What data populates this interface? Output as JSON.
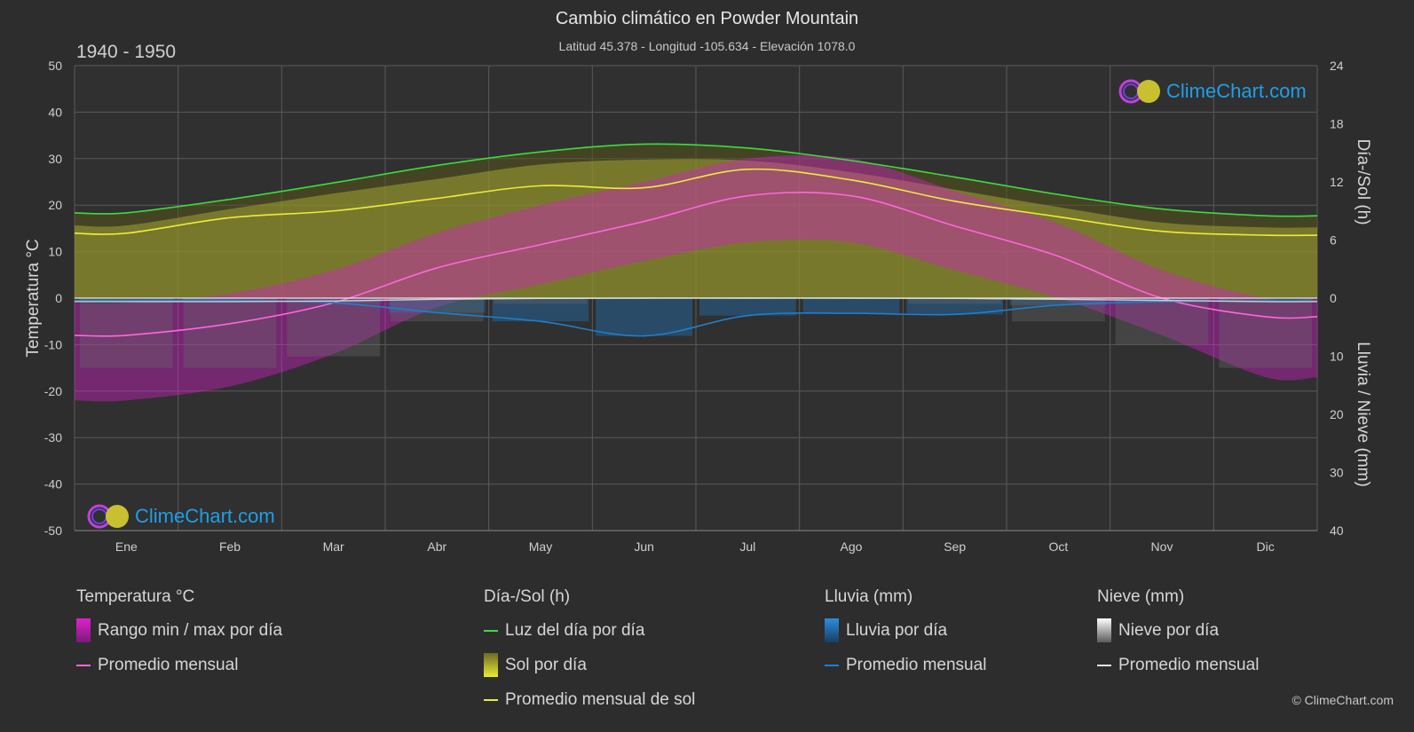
{
  "header": {
    "title": "Cambio climático en Powder Mountain",
    "subtitle": "Latitud 45.378 - Longitud -105.634 - Elevación 1078.0",
    "period": "1940 - 1950"
  },
  "brand": {
    "name": "ClimeChart.com",
    "copyright": "© ClimeChart.com"
  },
  "colors": {
    "background": "#2d2d2d",
    "temp_range": "#d51ec8",
    "temp_avg": "#ff66e0",
    "daylight": "#3ddc3d",
    "sunshine": "#b8b836",
    "sun_avg": "#ecec3c",
    "rain": "#1e7fd0",
    "snow": "#cfcfcf",
    "grid": "#5a5a5a"
  },
  "chart_data": {
    "type": "line",
    "months": [
      "Ene",
      "Feb",
      "Mar",
      "Abr",
      "May",
      "Jun",
      "Jul",
      "Ago",
      "Sep",
      "Oct",
      "Nov",
      "Dic"
    ],
    "y_left": {
      "label": "Temperatura °C",
      "range": [
        -50,
        50
      ],
      "ticks": [
        50,
        40,
        30,
        20,
        10,
        0,
        -10,
        -20,
        -30,
        -40,
        -50
      ]
    },
    "y_right_top": {
      "label": "Día-/Sol (h)",
      "range": [
        0,
        24
      ],
      "ticks": [
        24,
        18,
        12,
        6,
        0
      ]
    },
    "y_right_bottom": {
      "label": "Lluvia / Nieve (mm)",
      "range": [
        0,
        40
      ],
      "ticks": [
        0,
        10,
        20,
        30,
        40
      ]
    },
    "series": [
      {
        "name": "Promedio mensual",
        "group": "Temperatura °C",
        "unit": "°C",
        "values": [
          -8,
          -5.5,
          -1,
          6.5,
          11.5,
          16.5,
          22,
          22,
          15.5,
          9,
          0,
          -4
        ]
      },
      {
        "name": "Luz del día por día",
        "group": "Día-/Sol (h)",
        "unit": "h",
        "values": [
          8.8,
          10.2,
          11.9,
          13.7,
          15.1,
          15.9,
          15.5,
          14.2,
          12.5,
          10.7,
          9.2,
          8.5
        ]
      },
      {
        "name": "Promedio mensual de sol",
        "group": "Día-/Sol (h)",
        "unit": "h",
        "values": [
          6.7,
          8.3,
          9.0,
          10.3,
          11.6,
          11.4,
          13.3,
          12.2,
          10.0,
          8.4,
          6.9,
          6.5
        ]
      },
      {
        "name": "Sol por día",
        "group": "Día-/Sol (h)",
        "unit": "h",
        "values": [
          7.5,
          9.2,
          10.8,
          12.3,
          13.8,
          14.3,
          14.2,
          13.0,
          11.2,
          9.4,
          7.8,
          7.3
        ]
      },
      {
        "name": "Promedio mensual",
        "group": "Lluvia (mm)",
        "unit": "mm",
        "values": [
          0.4,
          0.4,
          0.8,
          2.5,
          4.0,
          6.5,
          3.0,
          2.6,
          2.8,
          1.2,
          0.6,
          0.5
        ]
      },
      {
        "name": "Promedio mensual",
        "group": "Nieve (mm)",
        "unit": "mm",
        "values": [
          0.6,
          0.6,
          0.5,
          0.2,
          0.05,
          0,
          0,
          0,
          0.05,
          0.2,
          0.4,
          0.6
        ]
      }
    ],
    "temp_range_max": [
      -1,
      1,
      6,
      14,
      20,
      25,
      30,
      30,
      23,
      16,
      6,
      0
    ],
    "temp_range_min": [
      -22,
      -19,
      -12,
      -2,
      3,
      8,
      12,
      12,
      6,
      0,
      -8,
      -17
    ]
  },
  "legend": {
    "temperature": {
      "title": "Temperatura °C",
      "items": [
        "Rango min / max por día",
        "Promedio mensual"
      ]
    },
    "daysun": {
      "title": "Día-/Sol (h)",
      "items": [
        "Luz del día por día",
        "Sol por día",
        "Promedio mensual de sol"
      ]
    },
    "rain": {
      "title": "Lluvia (mm)",
      "items": [
        "Lluvia por día",
        "Promedio mensual"
      ]
    },
    "snow": {
      "title": "Nieve (mm)",
      "items": [
        "Nieve por día",
        "Promedio mensual"
      ]
    }
  }
}
